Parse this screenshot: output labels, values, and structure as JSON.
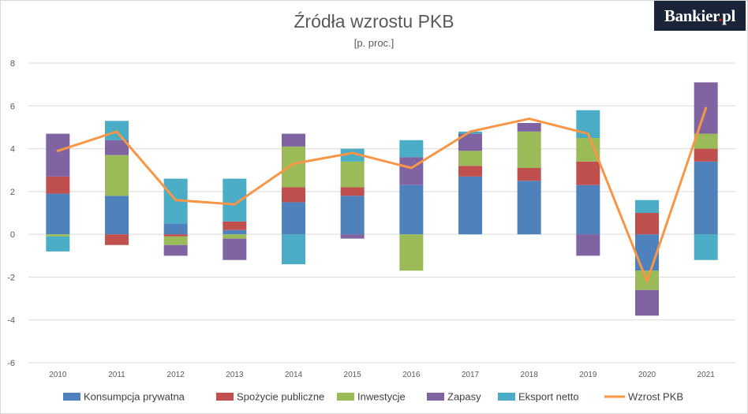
{
  "brand": {
    "name": "Bankier",
    "dot": ".",
    "tld": "pl"
  },
  "chart_data": {
    "type": "bar",
    "stacked": true,
    "title": "Źródła wzrostu PKB",
    "subtitle": "[p. proc.]",
    "xlabel": "",
    "ylabel": "",
    "ylim": [
      -6,
      8
    ],
    "yticks": [
      8,
      6,
      4,
      2,
      0,
      -2,
      -4,
      -6
    ],
    "grid": true,
    "legend": "bottom",
    "categories": [
      "2010",
      "2011",
      "2012",
      "2013",
      "2014",
      "2015",
      "2016",
      "2017",
      "2018",
      "2019",
      "2020",
      "2021"
    ],
    "series": [
      {
        "name": "Konsumpcja prywatna",
        "color": "#4f81bd",
        "values": [
          1.9,
          1.8,
          0.5,
          0.2,
          1.5,
          1.8,
          2.3,
          2.7,
          2.5,
          2.3,
          -1.7,
          3.4
        ]
      },
      {
        "name": "Spożycie publiczne",
        "color": "#c0504d",
        "values": [
          0.8,
          -0.5,
          -0.1,
          0.4,
          0.7,
          0.4,
          0.0,
          0.5,
          0.6,
          1.1,
          1.0,
          0.6
        ]
      },
      {
        "name": "Inwestycje",
        "color": "#9bbb59",
        "values": [
          -0.1,
          1.9,
          -0.4,
          -0.2,
          1.9,
          1.2,
          -1.7,
          0.7,
          1.7,
          1.1,
          -0.9,
          0.7
        ]
      },
      {
        "name": "Zapasy",
        "color": "#8064a2",
        "values": [
          2.0,
          0.7,
          -0.5,
          -1.0,
          0.6,
          -0.2,
          1.3,
          0.8,
          0.4,
          -1.0,
          -1.2,
          2.4
        ]
      },
      {
        "name": "Eksport netto",
        "color": "#4bacc6",
        "values": [
          -0.7,
          0.9,
          2.1,
          2.0,
          -1.4,
          0.6,
          0.8,
          0.1,
          0.0,
          1.3,
          0.6,
          -1.2
        ]
      }
    ],
    "line": {
      "name": "Wzrost PKB",
      "color": "#f79646",
      "values": [
        3.9,
        4.8,
        1.6,
        1.4,
        3.3,
        3.8,
        3.1,
        4.8,
        5.4,
        4.7,
        -2.2,
        5.9
      ]
    }
  }
}
